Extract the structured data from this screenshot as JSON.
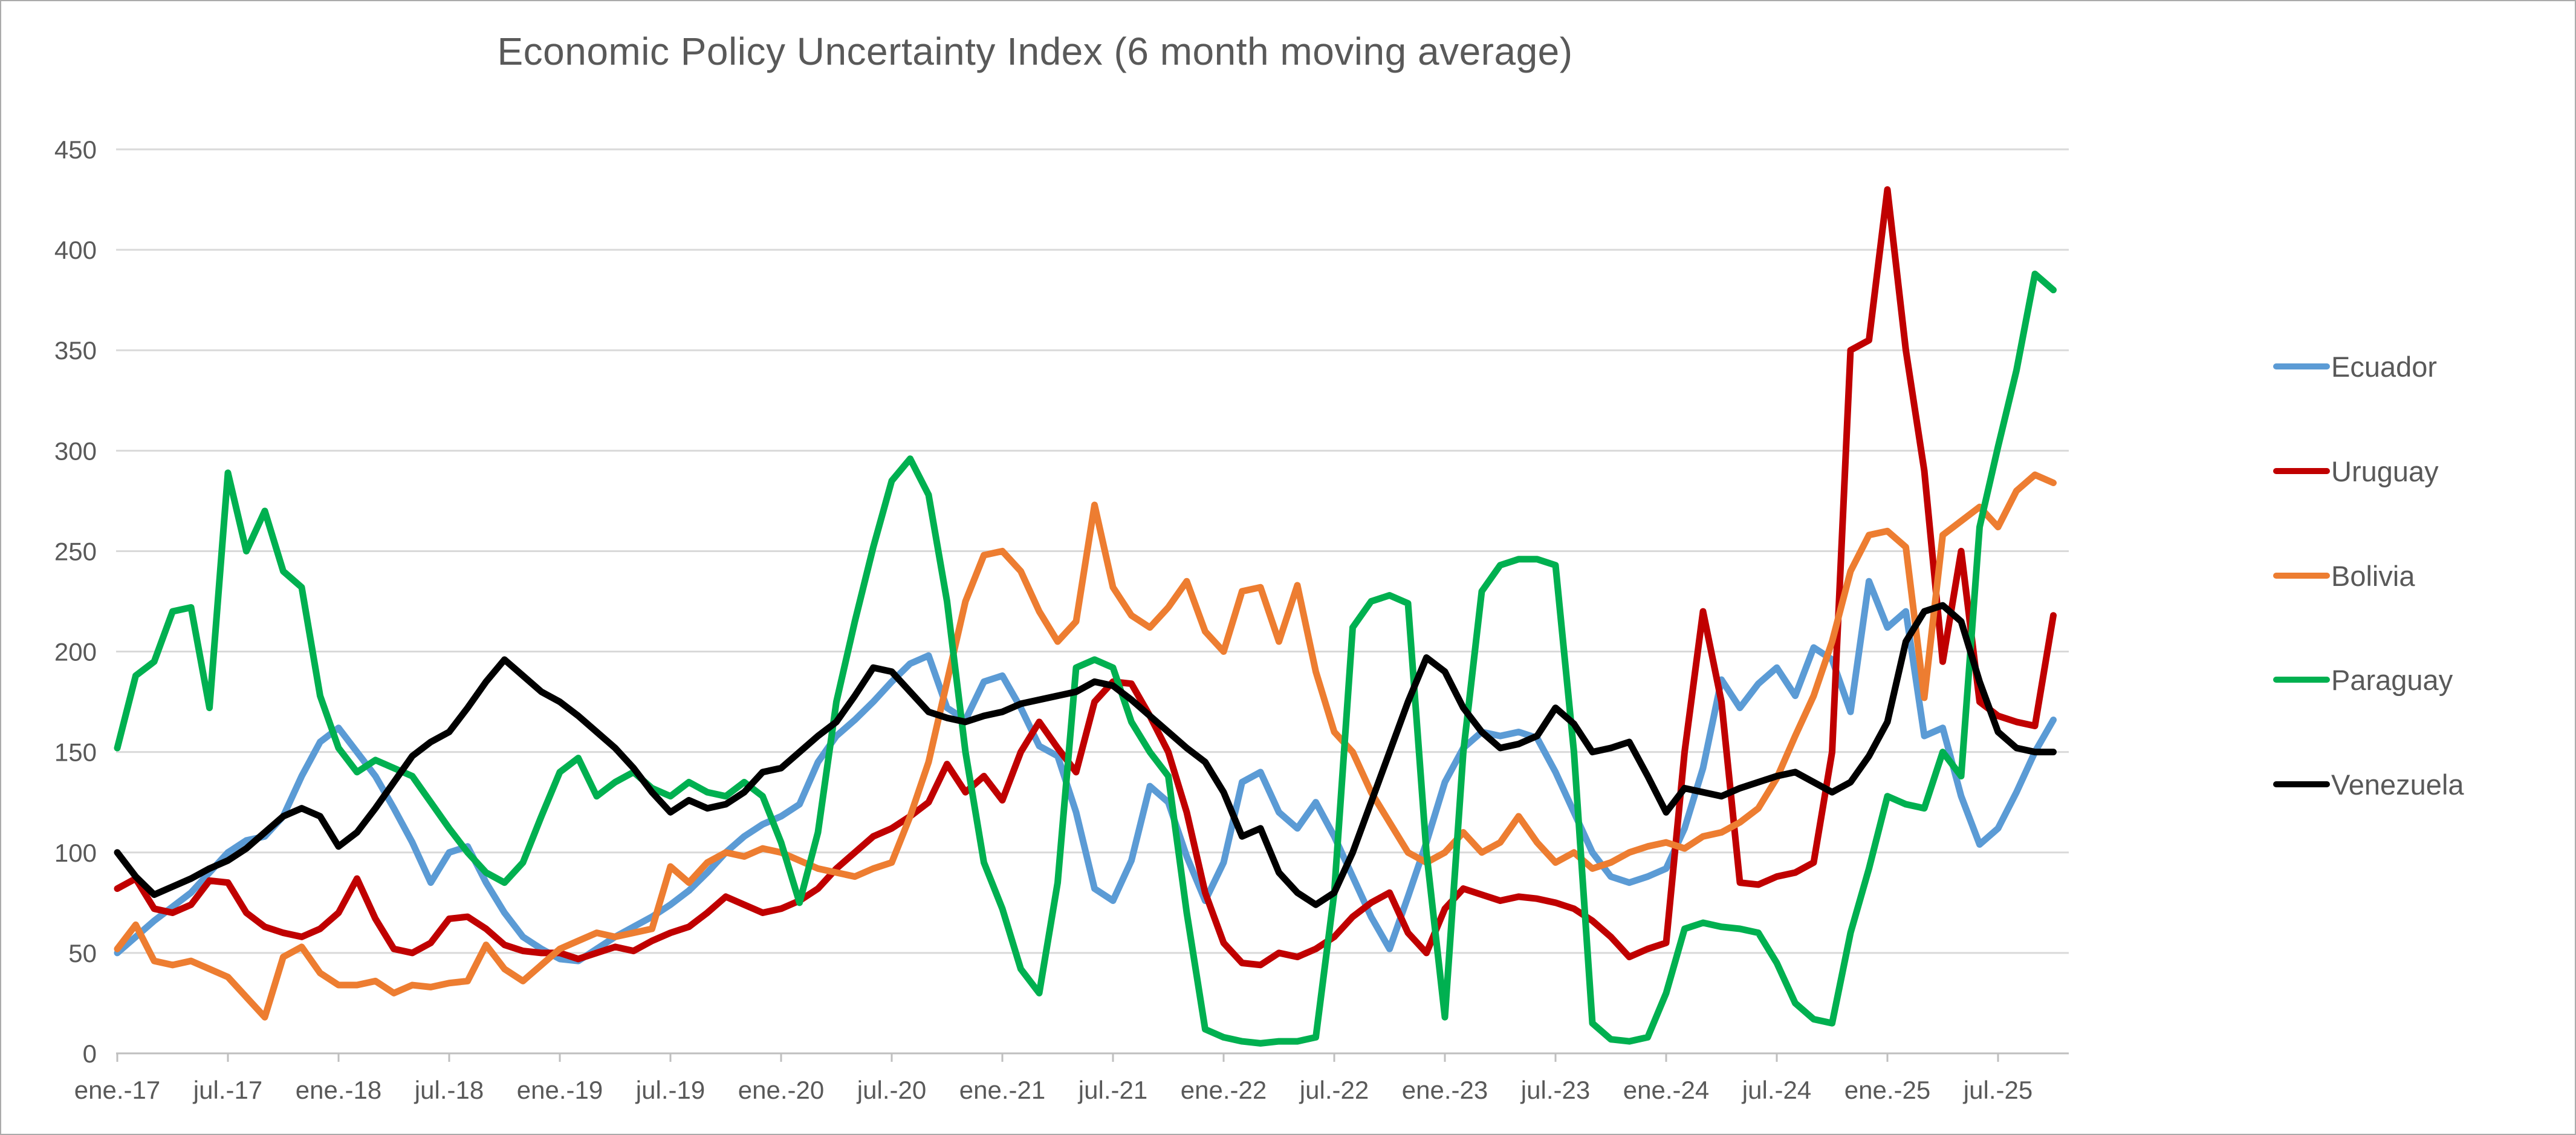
{
  "page": {
    "background": "#ffffff",
    "border_color": "#ababab",
    "text_color": "#595959",
    "gridline_color": "#d9d9d9",
    "axis_line_color": "#bfbfbf"
  },
  "chart_data": {
    "type": "line",
    "title": "Economic Policy Uncertainty Index (6 month moving average)",
    "xlabel": "",
    "ylabel": "",
    "ylim": [
      0,
      450
    ],
    "ytick_step": 50,
    "y_tick_labels": [
      "0",
      "50",
      "100",
      "150",
      "200",
      "250",
      "300",
      "350",
      "400",
      "450"
    ],
    "grid": true,
    "legend_position": "right",
    "x_start_label": "ene.-17",
    "x_interval": "1 month",
    "x_tick_every": 6,
    "x_tick_labels": [
      "ene.-17",
      "jul.-17",
      "ene.-18",
      "jul.-18",
      "ene.-19",
      "jul.-19",
      "ene.-20",
      "jul.-20",
      "ene.-21",
      "jul.-21",
      "ene.-22",
      "jul.-22",
      "ene.-23",
      "jul.-23",
      "ene.-24",
      "jul.-24",
      "ene.-25",
      "jul.-25"
    ],
    "series": [
      {
        "name": "Ecuador",
        "color": "#5b9bd5",
        "values": [
          50,
          58,
          66,
          73,
          80,
          90,
          100,
          106,
          108,
          118,
          138,
          155,
          162,
          150,
          138,
          122,
          105,
          85,
          100,
          103,
          85,
          70,
          58,
          52,
          47,
          46,
          52,
          58,
          63,
          68,
          74,
          81,
          90,
          100,
          108,
          114,
          118,
          124,
          145,
          158,
          166,
          175,
          185,
          194,
          198,
          172,
          166,
          185,
          188,
          172,
          153,
          148,
          120,
          82,
          76,
          96,
          133,
          125,
          98,
          76,
          95,
          135,
          140,
          120,
          112,
          125,
          108,
          88,
          68,
          52,
          78,
          105,
          135,
          152,
          160,
          158,
          160,
          157,
          140,
          120,
          100,
          88,
          85,
          88,
          92,
          112,
          142,
          186,
          172,
          184,
          192,
          178,
          202,
          196,
          170,
          235,
          212,
          220,
          158,
          162,
          128,
          104,
          112,
          130,
          150,
          166
        ]
      },
      {
        "name": "Uruguay",
        "color": "#c00000",
        "values": [
          82,
          87,
          72,
          70,
          74,
          86,
          85,
          70,
          63,
          60,
          58,
          62,
          70,
          87,
          67,
          52,
          50,
          55,
          67,
          68,
          62,
          54,
          51,
          50,
          50,
          47,
          50,
          53,
          51,
          56,
          60,
          63,
          70,
          78,
          74,
          70,
          72,
          76,
          82,
          92,
          100,
          108,
          112,
          118,
          125,
          144,
          130,
          138,
          126,
          150,
          165,
          152,
          140,
          175,
          185,
          184,
          168,
          150,
          120,
          80,
          55,
          45,
          44,
          50,
          48,
          52,
          58,
          68,
          75,
          80,
          60,
          50,
          72,
          82,
          79,
          76,
          78,
          77,
          75,
          72,
          66,
          58,
          48,
          52,
          55,
          150,
          220,
          175,
          85,
          84,
          88,
          90,
          95,
          150,
          350,
          355,
          430,
          350,
          290,
          195,
          250,
          175,
          168,
          165,
          163,
          218
        ]
      },
      {
        "name": "Bolivia",
        "color": "#ed7d31",
        "values": [
          52,
          64,
          46,
          44,
          46,
          42,
          38,
          28,
          18,
          48,
          53,
          40,
          34,
          34,
          36,
          30,
          34,
          33,
          35,
          36,
          54,
          42,
          36,
          44,
          52,
          56,
          60,
          58,
          60,
          62,
          93,
          85,
          95,
          100,
          98,
          102,
          100,
          96,
          92,
          90,
          88,
          92,
          95,
          118,
          145,
          185,
          225,
          248,
          250,
          240,
          220,
          205,
          215,
          273,
          232,
          218,
          212,
          222,
          235,
          210,
          200,
          230,
          232,
          205,
          233,
          190,
          160,
          150,
          130,
          115,
          100,
          95,
          100,
          110,
          100,
          105,
          118,
          105,
          95,
          100,
          92,
          95,
          100,
          103,
          105,
          102,
          108,
          110,
          115,
          122,
          137,
          158,
          178,
          205,
          240,
          258,
          260,
          252,
          177,
          258,
          265,
          272,
          262,
          280,
          288,
          284
        ]
      },
      {
        "name": "Paraguay",
        "color": "#00b050",
        "values": [
          152,
          188,
          195,
          220,
          222,
          172,
          289,
          250,
          270,
          240,
          232,
          178,
          152,
          140,
          146,
          142,
          138,
          125,
          112,
          100,
          90,
          85,
          95,
          118,
          140,
          147,
          128,
          135,
          140,
          132,
          128,
          135,
          130,
          128,
          135,
          128,
          105,
          75,
          110,
          175,
          215,
          252,
          285,
          296,
          278,
          225,
          150,
          95,
          72,
          42,
          30,
          85,
          192,
          196,
          192,
          165,
          150,
          138,
          70,
          12,
          8,
          6,
          5,
          6,
          6,
          8,
          80,
          212,
          225,
          228,
          224,
          100,
          18,
          150,
          230,
          243,
          246,
          246,
          243,
          150,
          15,
          7,
          6,
          8,
          30,
          62,
          65,
          63,
          62,
          60,
          45,
          25,
          17,
          15,
          60,
          92,
          128,
          124,
          122,
          150,
          138,
          262,
          302,
          340,
          388,
          380
        ]
      },
      {
        "name": "Venezuela",
        "color": "#000000",
        "values": [
          100,
          88,
          79,
          83,
          87,
          92,
          96,
          102,
          110,
          118,
          122,
          118,
          103,
          110,
          122,
          135,
          148,
          155,
          160,
          172,
          185,
          196,
          188,
          180,
          175,
          168,
          160,
          152,
          142,
          130,
          120,
          126,
          122,
          124,
          130,
          140,
          142,
          150,
          158,
          165,
          178,
          192,
          190,
          180,
          170,
          167,
          165,
          168,
          170,
          174,
          176,
          178,
          180,
          185,
          183,
          176,
          168,
          160,
          152,
          145,
          130,
          108,
          112,
          90,
          80,
          74,
          80,
          100,
          125,
          150,
          175,
          197,
          190,
          172,
          160,
          152,
          154,
          158,
          172,
          164,
          150,
          152,
          155,
          138,
          120,
          132,
          130,
          128,
          132,
          135,
          138,
          140,
          135,
          130,
          135,
          148,
          165,
          205,
          220,
          223,
          215,
          185,
          160,
          152,
          150,
          150
        ]
      }
    ]
  }
}
